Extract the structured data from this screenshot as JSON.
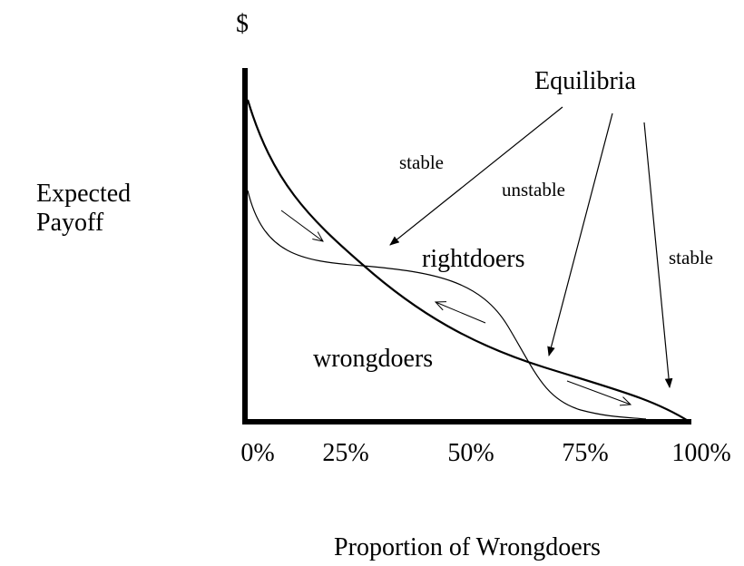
{
  "axis": {
    "y_symbol": "$",
    "y_label_lines": [
      "Expected",
      "Payoff"
    ],
    "x_label": "Proportion of Wrongdoers",
    "x_ticks": [
      "0%",
      "25%",
      "50%",
      "75%",
      "100%"
    ]
  },
  "annotations": {
    "equilibria": "Equilibria",
    "stable_left": "stable",
    "unstable": "unstable",
    "stable_right": "stable",
    "rightdoers": "rightdoers",
    "wrongdoers": "wrongdoers"
  }
}
